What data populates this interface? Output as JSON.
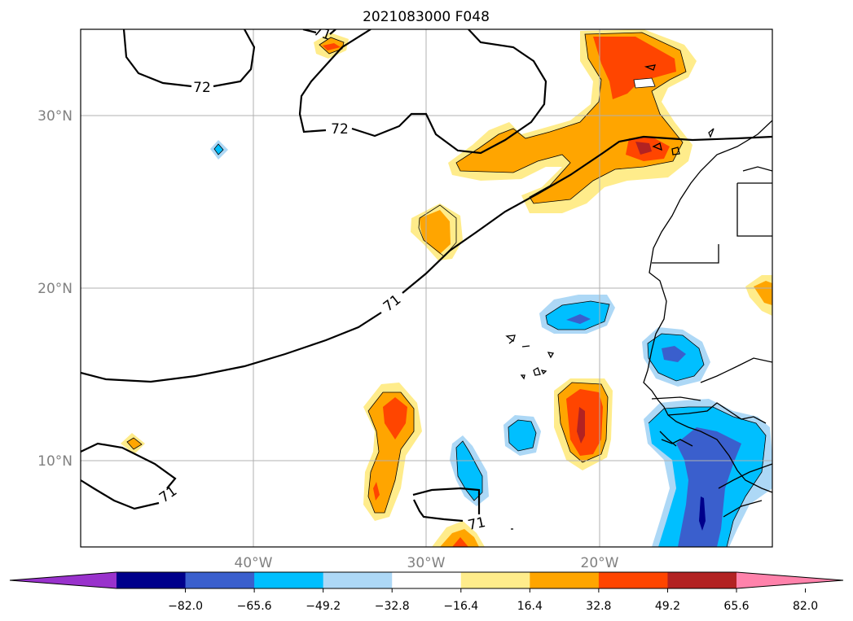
{
  "title": "2021083000 F048",
  "map": {
    "lat_labels": [
      "30°N",
      "20°N",
      "10°N"
    ],
    "lon_labels": [
      "40°W",
      "30°W",
      "20°W"
    ],
    "contour_labels": [
      "72",
      "72",
      "71",
      "71",
      "71",
      "71"
    ],
    "gridlines": true
  },
  "colorbar": {
    "ticks": [
      "−82.0",
      "−65.6",
      "−49.2",
      "−32.8",
      "−16.4",
      "16.4",
      "32.8",
      "49.2",
      "65.6",
      "82.0"
    ],
    "colors": [
      "#9932CC",
      "#00008B",
      "#3A5FCD",
      "#00BFFF",
      "#ADD8F6",
      "#FFFFFF",
      "#FFEC8B",
      "#FFA500",
      "#FF4500",
      "#B22222",
      "#FF82AB"
    ],
    "extend": "both"
  },
  "fill_colors": {
    "yellow": "#FFEC8B",
    "orange": "#FFA500",
    "red_orange": "#FF4500",
    "dark_red": "#B22222",
    "light_blue": "#ADD8F6",
    "deep_sky": "#00BFFF",
    "royal_blue": "#3A5FCD",
    "navy": "#00008B"
  }
}
